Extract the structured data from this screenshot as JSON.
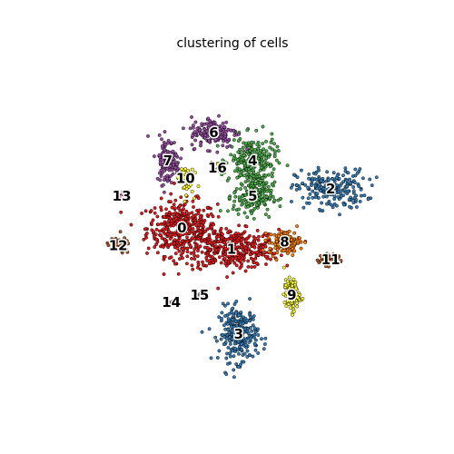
{
  "chart_data": {
    "type": "scatter",
    "title": "clustering of cells",
    "xlabel": "",
    "ylabel": "",
    "grid": false,
    "legend": "none (labels on data)",
    "xlim": [
      -50,
      50
    ],
    "ylim": [
      -50,
      50
    ],
    "clusters": [
      {
        "id": "0",
        "label": "0",
        "color": "#e41a1c",
        "center": [
          -14,
          1
        ],
        "spread": [
          9,
          7
        ],
        "count": 380
      },
      {
        "id": "1",
        "label": "1",
        "color": "#e41a1c",
        "center": [
          0,
          -5
        ],
        "spread": [
          12,
          5
        ],
        "count": 380
      },
      {
        "id": "2",
        "label": "2",
        "color": "#377eb8",
        "center": [
          28,
          12
        ],
        "spread": [
          9,
          5
        ],
        "count": 220
      },
      {
        "id": "3",
        "label": "3",
        "color": "#377eb8",
        "center": [
          2,
          -29
        ],
        "spread": [
          5,
          7
        ],
        "count": 260
      },
      {
        "id": "4",
        "label": "4",
        "color": "#4daf4a",
        "center": [
          6,
          20
        ],
        "spread": [
          6,
          6
        ],
        "count": 230
      },
      {
        "id": "5",
        "label": "5",
        "color": "#4daf4a",
        "center": [
          6,
          10
        ],
        "spread": [
          5,
          5
        ],
        "count": 180
      },
      {
        "id": "6",
        "label": "6",
        "color": "#984ea3",
        "center": [
          -5,
          28
        ],
        "spread": [
          6,
          4
        ],
        "count": 150
      },
      {
        "id": "7",
        "label": "7",
        "color": "#984ea3",
        "center": [
          -18,
          20
        ],
        "spread": [
          3,
          6
        ],
        "count": 130
      },
      {
        "id": "8",
        "label": "8",
        "color": "#ff7f00",
        "center": [
          15,
          -3
        ],
        "spread": [
          4,
          3
        ],
        "count": 120
      },
      {
        "id": "9",
        "label": "9",
        "color": "#ffff33",
        "center": [
          17,
          -18
        ],
        "spread": [
          2,
          4
        ],
        "count": 110
      },
      {
        "id": "10",
        "label": "10",
        "color": "#ffff33",
        "center": [
          -13,
          15
        ],
        "spread": [
          2,
          4
        ],
        "count": 50
      },
      {
        "id": "11",
        "label": "11",
        "color": "#a65628",
        "center": [
          28,
          -8
        ],
        "spread": [
          3,
          1.5
        ],
        "count": 70
      },
      {
        "id": "12",
        "label": "12",
        "color": "#a65628",
        "center": [
          -32,
          -4
        ],
        "spread": [
          3,
          2
        ],
        "count": 40
      },
      {
        "id": "13",
        "label": "13",
        "color": "#f781bf",
        "center": [
          -31,
          10
        ],
        "spread": [
          1,
          1
        ],
        "count": 20
      },
      {
        "id": "14",
        "label": "14",
        "color": "#f781bf",
        "center": [
          -17,
          -20
        ],
        "spread": [
          0.6,
          0.6
        ],
        "count": 6
      },
      {
        "id": "15",
        "label": "15",
        "color": "#999999",
        "center": [
          -9,
          -18
        ],
        "spread": [
          0.6,
          0.6
        ],
        "count": 6
      },
      {
        "id": "16",
        "label": "16",
        "color": "#ffff33",
        "center": [
          -4,
          18
        ],
        "spread": [
          1.5,
          1.5
        ],
        "count": 18
      }
    ]
  }
}
